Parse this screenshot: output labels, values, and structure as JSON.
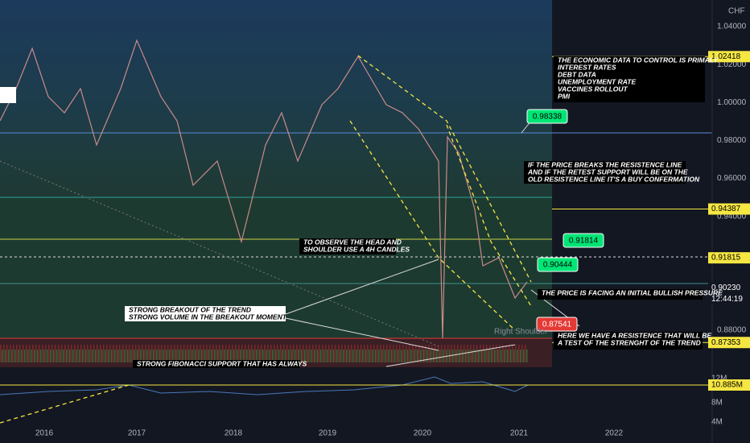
{
  "price_axis": {
    "currency": "CHF",
    "labels": [
      "1.04000",
      "1.02000",
      "1.00000",
      "0.98000",
      "0.96000",
      "0.94000",
      "0.88000"
    ]
  },
  "price_tags": [
    "1.02418",
    "0.94387",
    "0.91815",
    "0.90230",
    "0.87353"
  ],
  "countdown": "12:44:19",
  "volume_axis": [
    "12M",
    "10.885M",
    "8M",
    "4M"
  ],
  "years": [
    "2016",
    "2017",
    "2018",
    "2019",
    "2020",
    "2021",
    "2022"
  ],
  "annotations": [
    {
      "lines": [
        "THE ECONOMIC DATA TO CONTROL IS PRIMALY",
        "INTEREST RATES",
        "DEBT DATA",
        "UNEMPLOYMENT RATE",
        "VACCINES ROLLOUT",
        "PMI"
      ]
    },
    {
      "lines": [
        "IF THE PRICE BREAKS THE RESISTENCE LINE",
        "AND IF THE RETEST SUPPORT WILL BE ON THE",
        "OLD RESISTENCE LINE IT'S A BUY CONFERMATION"
      ]
    },
    {
      "lines": [
        "TO OBSERVE THE HEAD AND",
        "SHOULDER USE A 4H CANDLES"
      ]
    },
    {
      "lines": [
        "STRONG BREAKOUT OF THE TREND",
        "STRONG VOLUME IN THE BREAKOUT MOMENT"
      ]
    },
    {
      "lines": [
        "THE PRICE IS FACING AN INITIAL BULLISH PRESSURE"
      ]
    },
    {
      "lines": [
        "HERE WE HAVE A RESISTENCE THAT WILL BE",
        "A TEST OF THE STRENGHT OF THE TREND"
      ]
    },
    {
      "lines": [
        "STRONG FIBONACCI SUPPORT THAT HAS ALWAYS"
      ]
    }
  ],
  "callouts": [
    "0.98338",
    "0.91814",
    "0.90444",
    "0.87541"
  ],
  "pattern_label": "Right Shoulder"
}
